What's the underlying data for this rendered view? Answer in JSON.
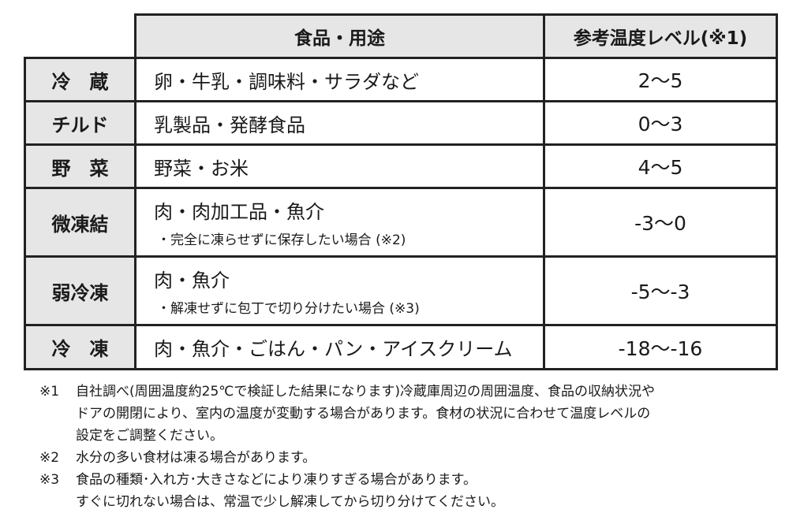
{
  "table": {
    "header": [
      "食品・用途",
      "参考温度レベル(※1)"
    ],
    "rows": [
      {
        "name": "冷　蔵",
        "foods": "卵・牛乳・調味料・サラダなど",
        "level": "2〜5"
      },
      {
        "name": "チルド",
        "foods": "乳製品・発酵食品",
        "level": "0〜3"
      },
      {
        "name": "野　菜",
        "foods": "野菜・お米",
        "level": "4〜5"
      },
      {
        "name": "微凍結",
        "foods": "肉・肉加工品・魚介",
        "note": "・完全に凍らせずに保存したい場合 (※2)",
        "level": "-3〜0"
      },
      {
        "name": "弱冷凍",
        "foods": "肉・魚介",
        "note": "・解凍せずに包丁で切り分けたい場合 (※3)",
        "level": "-5〜-3"
      },
      {
        "name": "冷　凍",
        "foods": "肉・魚介・ごはん・パン・アイスクリーム",
        "level": "-18〜-16"
      }
    ]
  },
  "notes": [
    {
      "mark": "※1",
      "lines": [
        "自社調べ(周囲温度約25℃で検証した結果になります)冷蔵庫周辺の周囲温度、食品の収納状況や",
        "ドアの開閉により、室内の温度が変動する場合があります。食材の状況に合わせて温度レベルの",
        "設定をご調整ください。"
      ]
    },
    {
      "mark": "※2",
      "lines": [
        "水分の多い食材は凍る場合があります。"
      ]
    },
    {
      "mark": "※3",
      "lines": [
        "食品の種類･入れ方･大きさなどにより凍りすぎる場合があります。",
        "すぐに切れない場合は、常温で少し解凍してから切り分けてください。"
      ]
    }
  ]
}
